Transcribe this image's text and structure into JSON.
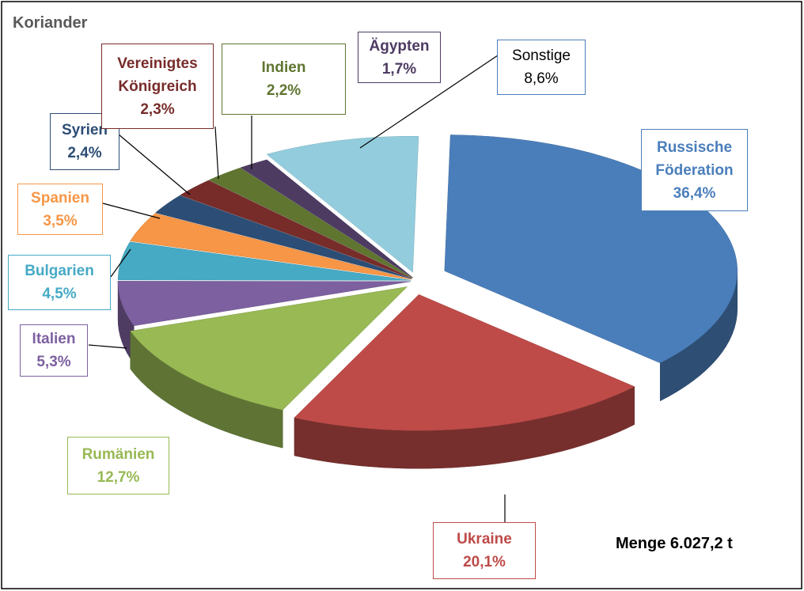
{
  "chart_data": {
    "type": "pie3d",
    "title": "Koriander",
    "categories": [
      "Russische Föderation",
      "Ukraine",
      "Rumänien",
      "Italien",
      "Bulgarien",
      "Spanien",
      "Syrien",
      "Vereinigtes Königreich",
      "Indien",
      "Ägypten",
      "Sonstige"
    ],
    "values": [
      36.4,
      20.1,
      12.7,
      5.3,
      4.5,
      3.5,
      2.4,
      2.3,
      2.2,
      1.7,
      8.6
    ],
    "value_labels": [
      "36,4%",
      "20,1%",
      "12,7%",
      "5,3%",
      "4,5%",
      "3,5%",
      "2,4%",
      "2,3%",
      "2,2%",
      "1,7%",
      "8,6%"
    ],
    "colors": [
      "#4a7ebb",
      "#be4b48",
      "#98b954",
      "#7d60a0",
      "#46aac5",
      "#f79646",
      "#2c4d75",
      "#772c2a",
      "#5f7530",
      "#4d3b62",
      "#93cddd"
    ],
    "annotation": "Menge 6.027,2 t"
  }
}
